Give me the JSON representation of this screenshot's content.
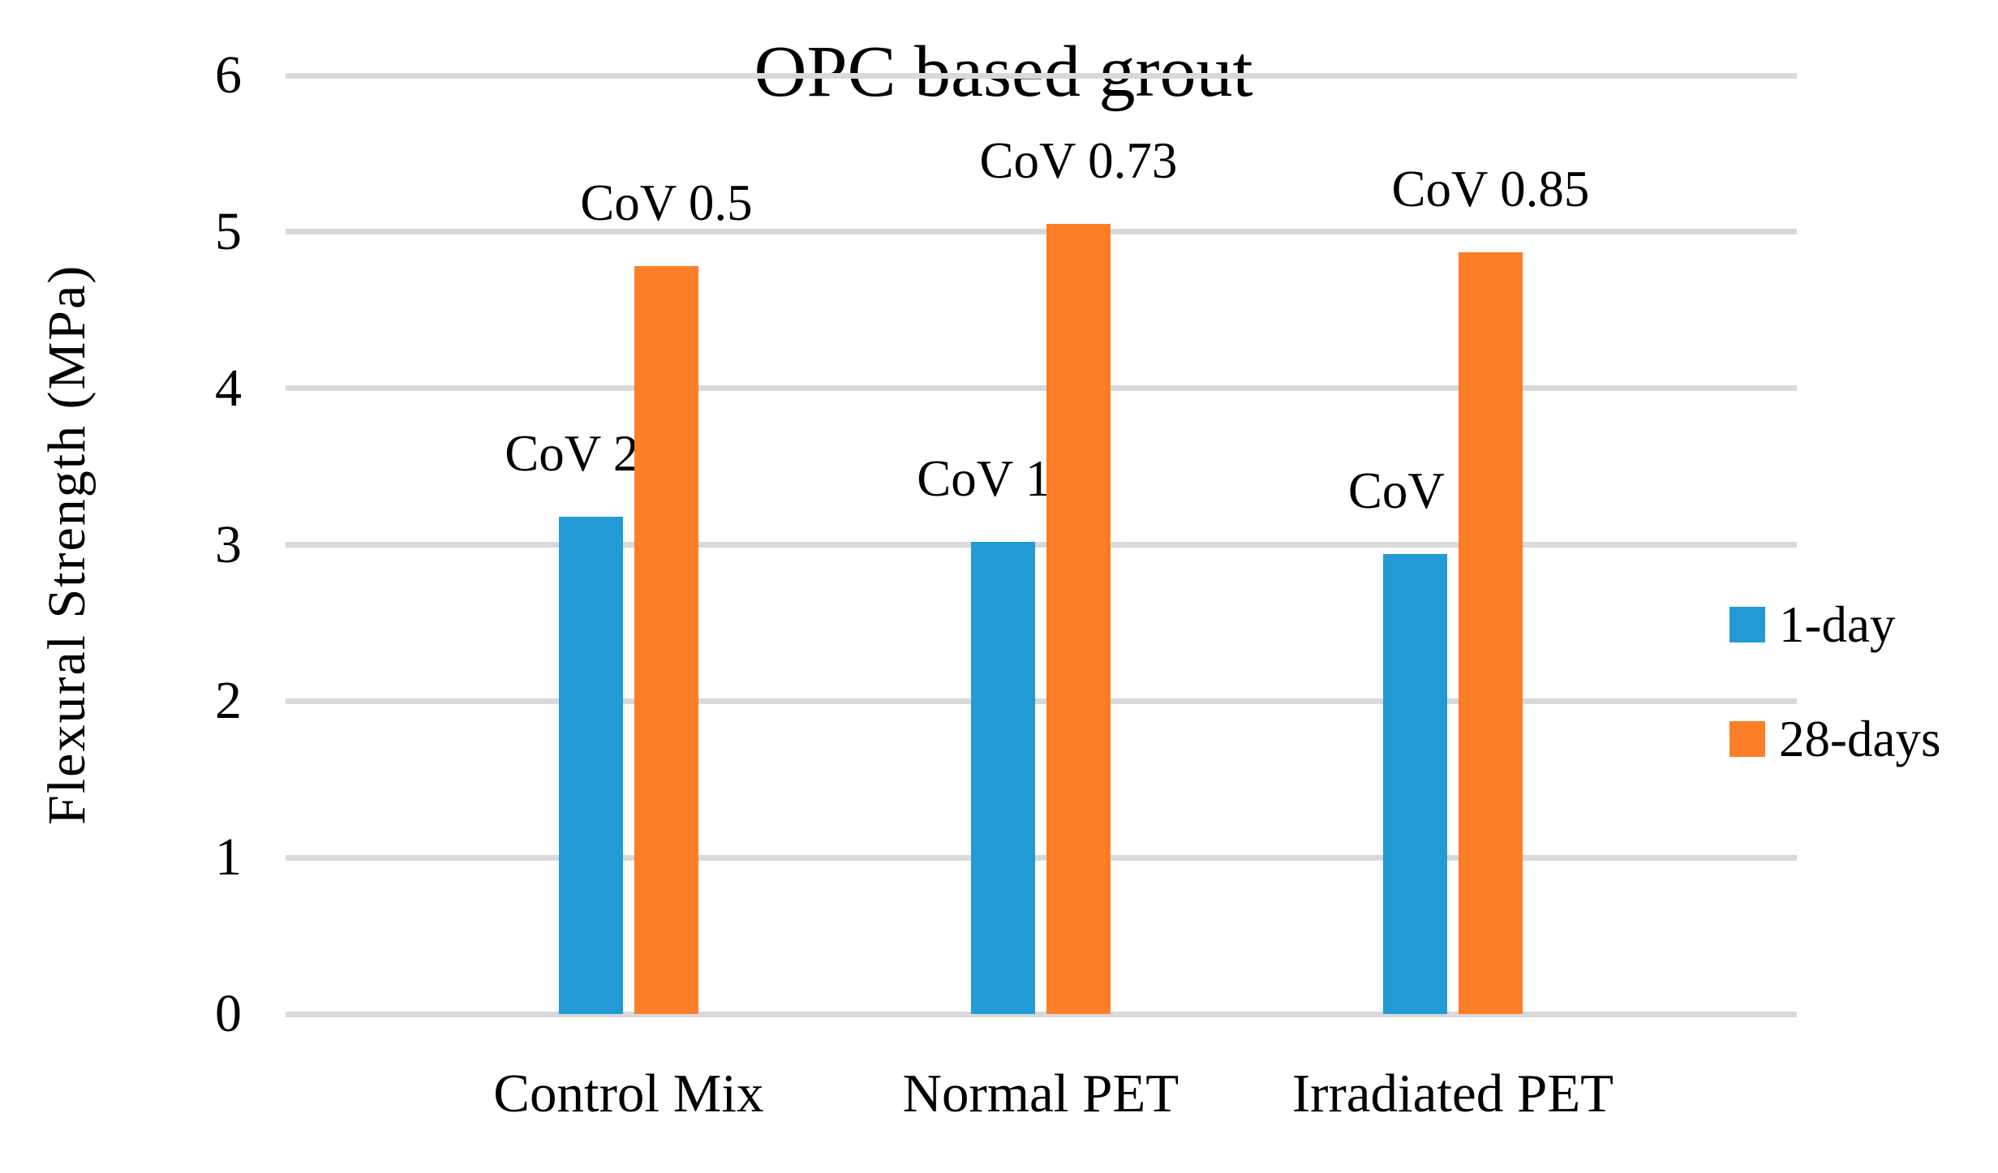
{
  "chart_data": {
    "type": "bar",
    "title": "OPC based grout",
    "xlabel": "",
    "ylabel": "Flexural Strength (MPa)",
    "ylim": [
      0,
      6
    ],
    "yticks": [
      0,
      1,
      2,
      3,
      4,
      5,
      6
    ],
    "grid": "horizontal",
    "gridline_color": "#D9D9D9",
    "background_color": "#FFFFFF",
    "text_color": "#000000",
    "legend_position": "right",
    "categories": [
      "Control Mix",
      "Normal PET",
      "Irradiated PET"
    ],
    "series": [
      {
        "name": "1-day",
        "color": "#219AD6",
        "values": [
          3.18,
          3.02,
          2.94
        ],
        "annotations": [
          "CoV 2.3",
          "CoV 1.8",
          "CoV 2"
        ]
      },
      {
        "name": "28-days",
        "color": "#FC7E27",
        "values": [
          4.78,
          5.05,
          4.87
        ],
        "annotations": [
          "CoV 0.5",
          "CoV 0.73",
          "CoV 0.85"
        ]
      }
    ]
  }
}
